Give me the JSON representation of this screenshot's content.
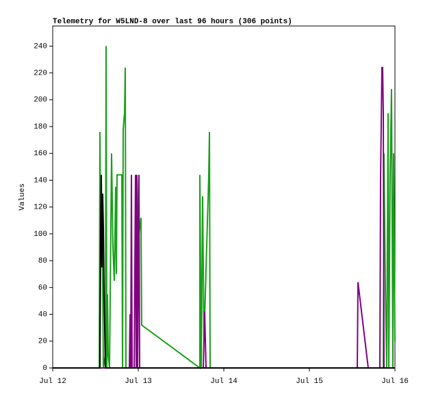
{
  "chart_data": {
    "type": "line",
    "title": "Telemetry for W5LND-8 over last 96 hours (306 points)",
    "y_label": "Values",
    "xlim": [
      0,
      4
    ],
    "ylim": [
      0,
      255
    ],
    "xticks": [
      {
        "value": 0,
        "label": "Jul 12"
      },
      {
        "value": 1,
        "label": "Jul 13"
      },
      {
        "value": 2,
        "label": "Jul 14"
      },
      {
        "value": 3,
        "label": "Jul 15"
      },
      {
        "value": 4,
        "label": "Jul 16"
      }
    ],
    "yticks": [
      0,
      20,
      40,
      60,
      80,
      100,
      120,
      140,
      160,
      180,
      200,
      220,
      240
    ],
    "grid": false,
    "series": [
      {
        "color": "#18a018",
        "x": [
          0,
          0.544,
          0.552,
          0.56,
          0.576,
          0.592,
          0.616,
          0.624,
          0.632,
          0.64,
          0.648,
          0.664,
          0.688,
          0.704,
          0.72,
          0.736,
          0.744,
          0.752,
          0.808,
          0.816,
          0.824,
          0.84,
          0.848,
          0.856,
          0.976,
          0.984,
          1.0,
          1.032,
          1.04,
          1.72,
          1.72,
          1.736,
          1.752,
          1.768,
          1.824,
          1.832,
          1.84,
          3.864,
          3.872,
          3.888,
          3.904,
          3.92,
          3.928,
          3.944,
          3.96,
          3.976,
          3.984,
          4.0
        ],
        "values": [
          0,
          0,
          176,
          100,
          130,
          0,
          10,
          240,
          0,
          55,
          10,
          0,
          160,
          90,
          65,
          135,
          70,
          144,
          144,
          0,
          178,
          190,
          224,
          0,
          0,
          144,
          96,
          112,
          32,
          0,
          144,
          0,
          128,
          20,
          144,
          176,
          0,
          0,
          160,
          60,
          0,
          190,
          0,
          145,
          208,
          0,
          160,
          20
        ]
      },
      {
        "color": "#800080",
        "x": [
          0,
          0.896,
          0.904,
          0.912,
          0.92,
          0.928,
          0.952,
          0.968,
          0.976,
          0.984,
          0.992,
          1.008,
          1.016,
          1.76,
          1.776,
          1.792,
          3.56,
          3.568,
          3.688,
          3.824,
          3.832,
          3.848,
          3.856,
          3.864,
          3.872,
          4.0
        ],
        "values": [
          0,
          0,
          40,
          0,
          144,
          0,
          0,
          144,
          0,
          144,
          0,
          144,
          0,
          0,
          42,
          0,
          0,
          64,
          0,
          0,
          140,
          224,
          224,
          190,
          0,
          0
        ]
      },
      {
        "color": "#000000",
        "x": [
          0,
          0.552,
          0.56,
          0.568,
          0.576,
          0.584,
          0.592,
          0.6,
          0.608,
          0.616,
          4.0
        ],
        "values": [
          0,
          0,
          100,
          144,
          75,
          130,
          105,
          55,
          30,
          0,
          0
        ]
      }
    ]
  }
}
